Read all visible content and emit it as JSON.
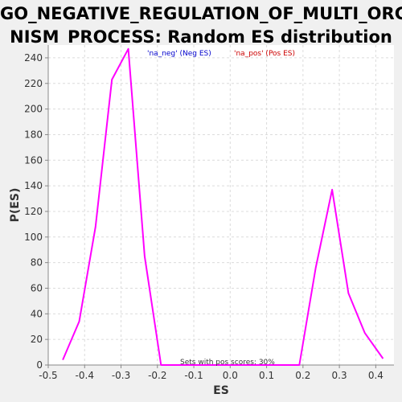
{
  "chart_data": {
    "type": "line",
    "title_lines": [
      "GO_NEGATIVE_REGULATION_OF_MULTI_ORGA",
      "NISM_PROCESS: Random ES distribution"
    ],
    "xlabel": "ES",
    "ylabel": "P(ES)",
    "xlim": [
      -0.5,
      0.45
    ],
    "ylim": [
      0,
      250
    ],
    "x_ticks": [
      "-0.5",
      "-0.4",
      "-0.3",
      "-0.2",
      "-0.1",
      "0.0",
      "0.1",
      "0.2",
      "0.3",
      "0.4"
    ],
    "x_tick_values": [
      -0.5,
      -0.4,
      -0.3,
      -0.2,
      -0.1,
      0.0,
      0.1,
      0.2,
      0.3,
      0.4
    ],
    "y_ticks": [
      "0",
      "20",
      "40",
      "60",
      "80",
      "100",
      "120",
      "140",
      "160",
      "180",
      "200",
      "220",
      "240"
    ],
    "y_tick_values": [
      0,
      20,
      40,
      60,
      80,
      100,
      120,
      140,
      160,
      180,
      200,
      220,
      240
    ],
    "grid": true,
    "legend": [
      {
        "label": "'na_neg' (Neg ES)",
        "color": "#0000cc"
      },
      {
        "label": "'na_pos' (Pos ES)",
        "color": "#cc0000"
      }
    ],
    "annotation": "Sets with pos scores: 30%",
    "series": [
      {
        "color": "#ff00ff",
        "x": [
          -0.46,
          -0.415,
          -0.37,
          -0.325,
          -0.28,
          -0.235,
          -0.19,
          -0.145,
          -0.1,
          -0.055,
          -0.01,
          0.035,
          0.08,
          0.125,
          0.19,
          0.235,
          0.28,
          0.325,
          0.37,
          0.42
        ],
        "y": [
          4,
          34,
          108,
          223,
          247,
          85,
          0,
          0,
          0,
          0,
          0,
          0,
          0,
          0,
          0,
          76,
          137,
          56,
          25,
          5
        ]
      }
    ]
  }
}
